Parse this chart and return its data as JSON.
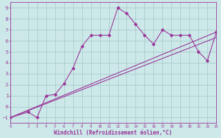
{
  "xlabel": "Windchill (Refroidissement éolien,°C)",
  "background_color": "#cce8e8",
  "line_color": "#993399",
  "grid_color": "#aacccc",
  "xlim": [
    0,
    23
  ],
  "ylim": [
    -1.5,
    9.5
  ],
  "xticks": [
    0,
    2,
    3,
    4,
    5,
    6,
    7,
    8,
    9,
    10,
    11,
    12,
    13,
    14,
    15,
    16,
    17,
    18,
    19,
    20,
    21,
    22,
    23
  ],
  "yticks": [
    -1,
    0,
    1,
    2,
    3,
    4,
    5,
    6,
    7,
    8,
    9
  ],
  "series1_x": [
    0,
    2,
    3,
    4,
    5,
    6,
    7,
    8,
    9,
    10,
    11,
    12,
    13,
    14,
    15,
    16,
    17,
    18,
    19,
    20,
    21,
    22,
    23
  ],
  "series1_y": [
    -1,
    -0.5,
    -1.0,
    1.0,
    1.1,
    2.1,
    3.5,
    5.5,
    6.5,
    6.5,
    6.5,
    9.0,
    8.5,
    7.5,
    6.5,
    5.7,
    7.0,
    6.5,
    6.5,
    6.5,
    5.0,
    4.2,
    6.8
  ],
  "line2_x": [
    0,
    23
  ],
  "line2_y": [
    -1,
    6.8
  ],
  "line3_x": [
    0,
    23
  ],
  "line3_y": [
    -1,
    6.3
  ],
  "marker_size": 2.5,
  "line_width": 0.8,
  "tick_fontsize_x": 4.0,
  "tick_fontsize_y": 5.0,
  "xlabel_fontsize": 5.5
}
